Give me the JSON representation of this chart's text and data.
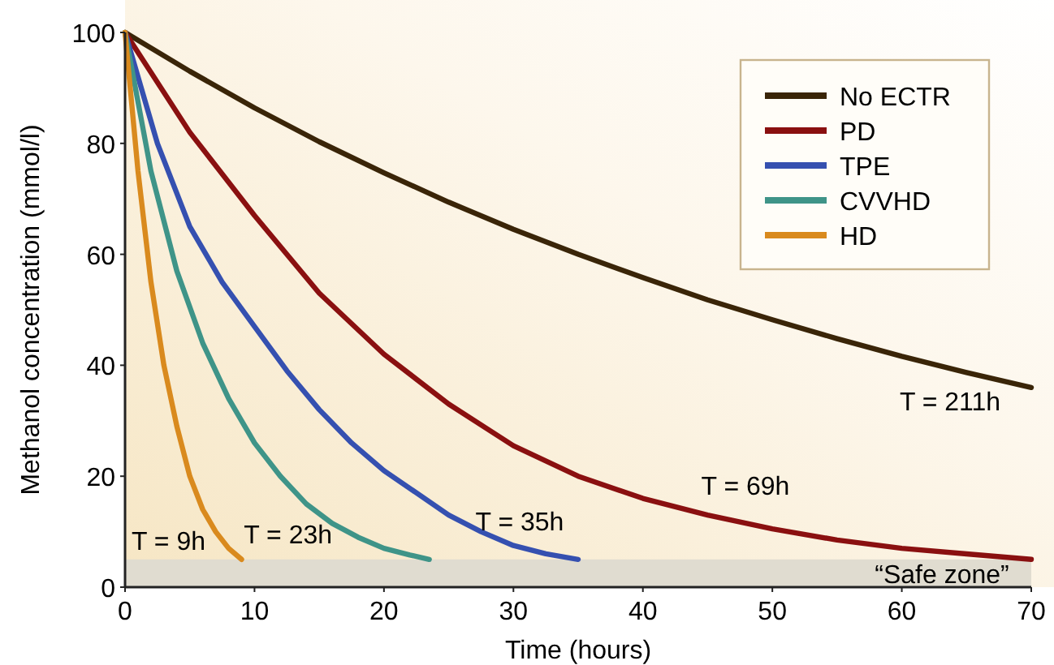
{
  "chart_data": {
    "type": "line",
    "xlabel": "Time (hours)",
    "ylabel": "Methanol concentration (mmol/l)",
    "xlim": [
      0,
      70
    ],
    "ylim": [
      0,
      100
    ],
    "xticks": [
      0,
      10,
      20,
      30,
      40,
      50,
      60,
      70
    ],
    "yticks": [
      0,
      20,
      40,
      60,
      80,
      100
    ],
    "grid": false,
    "legend": "top right",
    "marker": "none",
    "line_style": "solid",
    "series": [
      {
        "name": "No ECTR",
        "color": "#3a2508",
        "x": [
          0,
          5,
          10,
          15,
          20,
          25,
          30,
          35,
          40,
          45,
          50,
          55,
          60,
          65,
          70
        ],
        "values": [
          100,
          93,
          86.4,
          80.3,
          74.7,
          69.4,
          64.5,
          60,
          55.8,
          51.8,
          48.2,
          44.8,
          41.6,
          38.7,
          36
        ]
      },
      {
        "name": "PD",
        "color": "#8a1010",
        "x": [
          0,
          5,
          10,
          15,
          20,
          25,
          30,
          35,
          40,
          45,
          50,
          55,
          60,
          65,
          70
        ],
        "values": [
          100,
          82,
          67,
          53,
          42,
          33,
          25.5,
          20,
          16,
          13,
          10.5,
          8.5,
          7,
          6,
          5
        ]
      },
      {
        "name": "TPE",
        "color": "#3550b0",
        "x": [
          0,
          2.5,
          5,
          7.5,
          10,
          12.5,
          15,
          17.5,
          20,
          22.5,
          25,
          27.5,
          30,
          32.5,
          35
        ],
        "values": [
          100,
          80,
          65,
          55,
          47,
          39,
          32,
          26,
          21,
          17,
          13,
          10,
          7.5,
          6,
          5
        ]
      },
      {
        "name": "CVVHD",
        "color": "#3f9488",
        "x": [
          0,
          2,
          4,
          6,
          8,
          10,
          12,
          14,
          16,
          18,
          20,
          22,
          23.5
        ],
        "values": [
          100,
          75,
          57,
          44,
          34,
          26,
          20,
          15,
          11.5,
          9,
          7,
          5.8,
          5
        ]
      },
      {
        "name": "HD",
        "color": "#d98a1e",
        "x": [
          0,
          1,
          2,
          3,
          4,
          5,
          6,
          7,
          8,
          9
        ],
        "values": [
          100,
          75,
          55,
          40,
          29,
          20,
          14,
          10,
          7,
          5
        ]
      }
    ],
    "bands": [
      {
        "axis": "y",
        "from": 0,
        "to": 5,
        "label": "“Safe zone”",
        "color": "#e0dcd0"
      }
    ],
    "annotations": [
      "T = 211h",
      "T = 69h",
      "T = 35h",
      "T = 23h",
      "T = 9h"
    ]
  }
}
